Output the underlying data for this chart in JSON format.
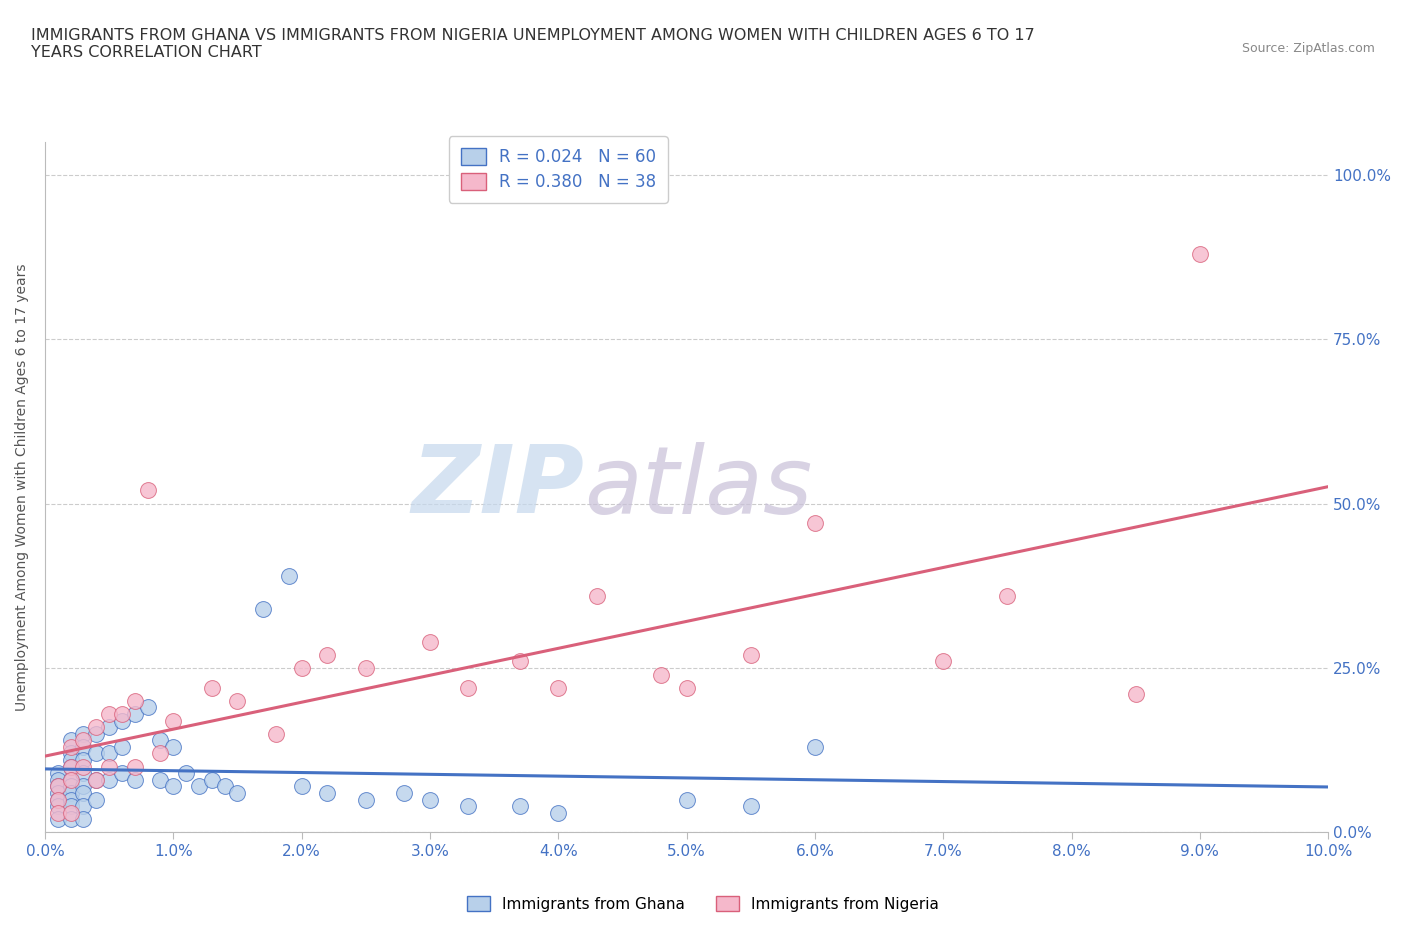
{
  "title": "IMMIGRANTS FROM GHANA VS IMMIGRANTS FROM NIGERIA UNEMPLOYMENT AMONG WOMEN WITH CHILDREN AGES 6 TO 17\nYEARS CORRELATION CHART",
  "source": "Source: ZipAtlas.com",
  "xlim": [
    0.0,
    0.1
  ],
  "ylim": [
    0.0,
    1.05
  ],
  "ghana_R": 0.024,
  "ghana_N": 60,
  "nigeria_R": 0.38,
  "nigeria_N": 38,
  "ghana_color": "#b8d0ea",
  "nigeria_color": "#f5b8cb",
  "ghana_line_color": "#4472c4",
  "nigeria_line_color": "#d9607a",
  "watermark_zip": "ZIP",
  "watermark_atlas": "atlas",
  "watermark_color_zip": "#c8d8e8",
  "watermark_color_atlas": "#c8b8d8",
  "ghana_x": [
    0.001,
    0.001,
    0.001,
    0.001,
    0.001,
    0.001,
    0.001,
    0.002,
    0.002,
    0.002,
    0.002,
    0.002,
    0.002,
    0.002,
    0.002,
    0.002,
    0.002,
    0.003,
    0.003,
    0.003,
    0.003,
    0.003,
    0.003,
    0.003,
    0.003,
    0.004,
    0.004,
    0.004,
    0.004,
    0.005,
    0.005,
    0.005,
    0.006,
    0.006,
    0.006,
    0.007,
    0.007,
    0.008,
    0.009,
    0.009,
    0.01,
    0.01,
    0.011,
    0.012,
    0.013,
    0.014,
    0.015,
    0.017,
    0.019,
    0.02,
    0.022,
    0.025,
    0.028,
    0.03,
    0.033,
    0.037,
    0.04,
    0.05,
    0.055,
    0.06
  ],
  "ghana_y": [
    0.09,
    0.08,
    0.07,
    0.06,
    0.05,
    0.04,
    0.02,
    0.14,
    0.12,
    0.11,
    0.1,
    0.08,
    0.07,
    0.06,
    0.05,
    0.04,
    0.02,
    0.15,
    0.13,
    0.11,
    0.09,
    0.07,
    0.06,
    0.04,
    0.02,
    0.15,
    0.12,
    0.08,
    0.05,
    0.16,
    0.12,
    0.08,
    0.17,
    0.13,
    0.09,
    0.18,
    0.08,
    0.19,
    0.14,
    0.08,
    0.13,
    0.07,
    0.09,
    0.07,
    0.08,
    0.07,
    0.06,
    0.34,
    0.39,
    0.07,
    0.06,
    0.05,
    0.06,
    0.05,
    0.04,
    0.04,
    0.03,
    0.05,
    0.04,
    0.13
  ],
  "nigeria_x": [
    0.001,
    0.001,
    0.001,
    0.002,
    0.002,
    0.002,
    0.002,
    0.003,
    0.003,
    0.004,
    0.004,
    0.005,
    0.005,
    0.006,
    0.007,
    0.007,
    0.008,
    0.009,
    0.01,
    0.013,
    0.015,
    0.018,
    0.02,
    0.022,
    0.025,
    0.03,
    0.033,
    0.037,
    0.04,
    0.043,
    0.048,
    0.05,
    0.055,
    0.06,
    0.07,
    0.075,
    0.085,
    0.09
  ],
  "nigeria_y": [
    0.07,
    0.05,
    0.03,
    0.13,
    0.1,
    0.08,
    0.03,
    0.14,
    0.1,
    0.16,
    0.08,
    0.18,
    0.1,
    0.18,
    0.2,
    0.1,
    0.52,
    0.12,
    0.17,
    0.22,
    0.2,
    0.15,
    0.25,
    0.27,
    0.25,
    0.29,
    0.22,
    0.26,
    0.22,
    0.36,
    0.24,
    0.22,
    0.27,
    0.47,
    0.26,
    0.36,
    0.21,
    0.88
  ]
}
